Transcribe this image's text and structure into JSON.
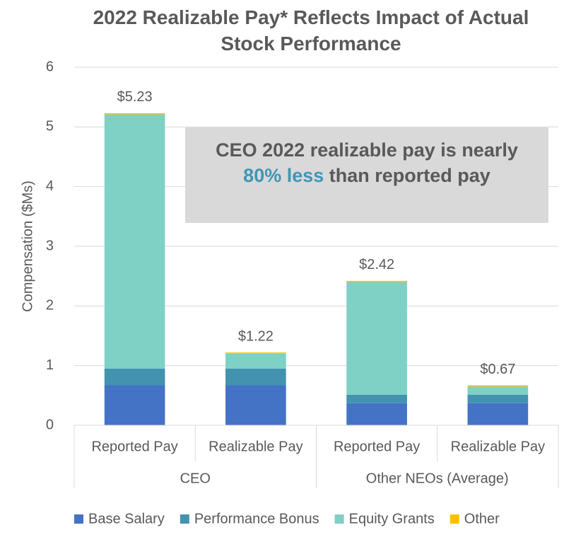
{
  "chart_data": {
    "type": "stacked_bar",
    "title": "2022 Realizable Pay* Reflects Impact of Actual Stock Performance",
    "y_label": "Compensation ($Ms)",
    "categories": [
      "Reported Pay",
      "Realizable Pay",
      "Reported Pay",
      "Realizable Pay"
    ],
    "groups": [
      "CEO",
      "Other NEOs (Average)"
    ],
    "series": [
      {
        "name": "Base Salary",
        "color": "#4472c4",
        "values": [
          0.67,
          0.67,
          0.37,
          0.37
        ]
      },
      {
        "name": "Performance Bonus",
        "color": "#4292b0",
        "values": [
          0.28,
          0.28,
          0.14,
          0.14
        ]
      },
      {
        "name": "Equity Grants",
        "color": "#7fd0c5",
        "values": [
          4.26,
          0.25,
          1.89,
          0.14
        ]
      },
      {
        "name": "Other",
        "color": "#ffc000",
        "values": [
          0.02,
          0.02,
          0.02,
          0.02
        ]
      }
    ],
    "totals": [
      5.23,
      1.22,
      2.42,
      0.67
    ],
    "total_labels": [
      "$5.23",
      "$1.22",
      "$2.42",
      "$0.67"
    ],
    "annotation": [
      "CEO 2022 realizable pay is nearly ",
      "80% less",
      " than reported pay"
    ],
    "ylim": [
      0,
      6
    ],
    "yticks": [
      0,
      1,
      2,
      3,
      4,
      5,
      6
    ],
    "grid": true,
    "legend": "bottom"
  }
}
